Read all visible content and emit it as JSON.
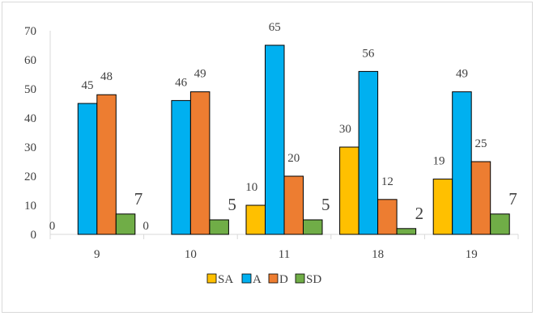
{
  "chart_data": {
    "type": "bar",
    "categories": [
      "9",
      "10",
      "11",
      "18",
      "19"
    ],
    "series": [
      {
        "name": "SA",
        "color": "#ffc000",
        "values": [
          0,
          0,
          10,
          30,
          19
        ]
      },
      {
        "name": "A",
        "color": "#00b0f0",
        "values": [
          45,
          46,
          65,
          56,
          49
        ]
      },
      {
        "name": "D",
        "color": "#ed7d31",
        "values": [
          48,
          49,
          20,
          12,
          25
        ]
      },
      {
        "name": "SD",
        "color": "#70ad47",
        "values": [
          7,
          5,
          5,
          2,
          7
        ]
      }
    ],
    "ylim": [
      0,
      70
    ],
    "yticks": [
      0,
      10,
      20,
      30,
      40,
      50,
      60,
      70
    ],
    "grid": false,
    "legend": "bottom",
    "data_labels": true
  }
}
